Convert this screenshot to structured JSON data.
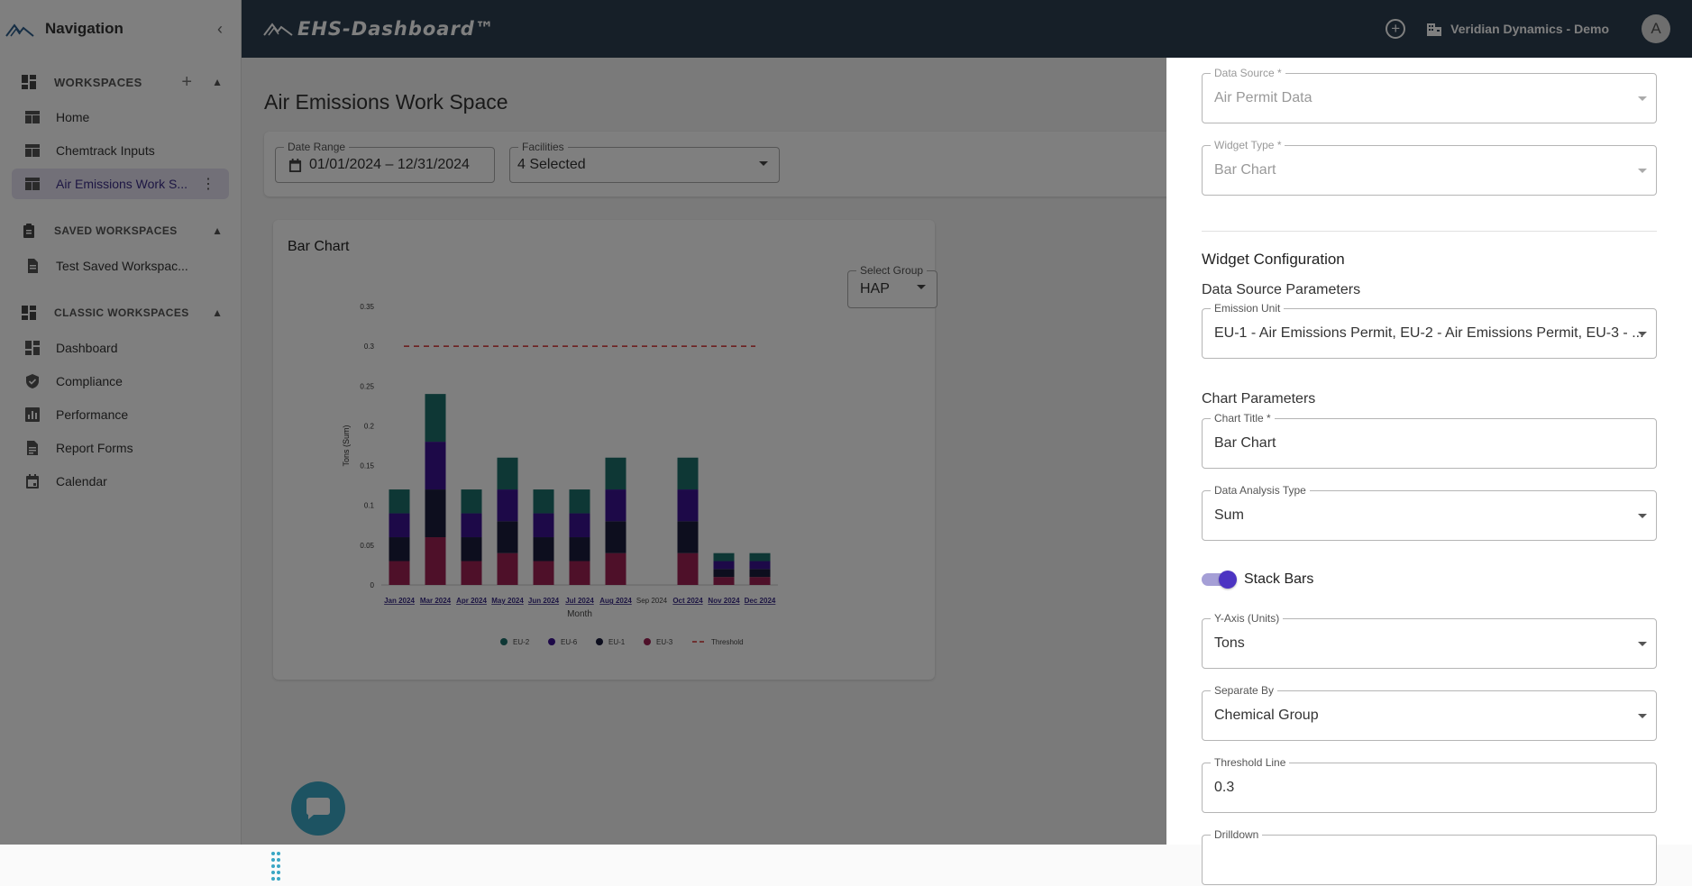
{
  "sidebar": {
    "title": "Navigation",
    "workspaces_label": "WORKSPACES",
    "workspaces": [
      {
        "label": "Home"
      },
      {
        "label": "Chemtrack Inputs"
      },
      {
        "label": "Air Emissions Work S..."
      }
    ],
    "saved_label": "SAVED WORKSPACES",
    "saved": [
      {
        "label": "Test Saved Workspac..."
      }
    ],
    "classic_label": "CLASSIC WORKSPACES",
    "classic": [
      {
        "label": "Dashboard",
        "icon": "dashboard-icon"
      },
      {
        "label": "Compliance",
        "icon": "shield-icon"
      },
      {
        "label": "Performance",
        "icon": "bar-chart-icon"
      },
      {
        "label": "Report Forms",
        "icon": "document-icon"
      },
      {
        "label": "Calendar",
        "icon": "calendar-icon"
      }
    ]
  },
  "header": {
    "brand": "EHS-Dashboard™",
    "org": "Veridian Dynamics - Demo",
    "avatar": "A"
  },
  "main": {
    "title": "Air Emissions Work Space",
    "date_range_label": "Date Range",
    "date_range_value": "01/01/2024 – 12/31/2024",
    "facilities_label": "Facilities",
    "facilities_value": "4 Selected",
    "card_title": "Bar Chart",
    "group_label": "Select Group",
    "group_value": "HAP"
  },
  "chart_data": {
    "type": "bar",
    "stacked": true,
    "title": "",
    "xlabel": "Month",
    "ylabel": "Tons (Sum)",
    "ylim": [
      0,
      0.35
    ],
    "yticks": [
      0,
      0.05,
      0.1,
      0.15,
      0.2,
      0.25,
      0.3,
      0.35
    ],
    "categories": [
      "Jan 2024",
      "Mar 2024",
      "Apr 2024",
      "May 2024",
      "Jun 2024",
      "Jul 2024",
      "Aug 2024",
      "Sep 2024",
      "Oct 2024",
      "Nov 2024",
      "Dec 2024"
    ],
    "category_linked": [
      true,
      true,
      true,
      true,
      true,
      true,
      true,
      false,
      true,
      true,
      true
    ],
    "series": [
      {
        "name": "EU-3",
        "color": "#9c2152",
        "values": [
          0.03,
          0.06,
          0.03,
          0.04,
          0.03,
          0.03,
          0.04,
          0,
          0.04,
          0.01,
          0.01
        ]
      },
      {
        "name": "EU-1",
        "color": "#1a1d3c",
        "values": [
          0.03,
          0.06,
          0.03,
          0.04,
          0.03,
          0.03,
          0.04,
          0,
          0.04,
          0.01,
          0.01
        ]
      },
      {
        "name": "EU-6",
        "color": "#3b1390",
        "values": [
          0.03,
          0.06,
          0.03,
          0.04,
          0.03,
          0.03,
          0.04,
          0,
          0.04,
          0.01,
          0.01
        ]
      },
      {
        "name": "EU-2",
        "color": "#1d6f6a",
        "values": [
          0.03,
          0.06,
          0.03,
          0.04,
          0.03,
          0.03,
          0.04,
          0,
          0.04,
          0.01,
          0.01
        ]
      }
    ],
    "threshold": {
      "name": "Threshold",
      "value": 0.3,
      "color": "#d32f2f"
    },
    "legend_order": [
      "EU-2",
      "EU-6",
      "EU-1",
      "EU-3",
      "Threshold"
    ],
    "legend_position": "bottom"
  },
  "drawer": {
    "data_source_label": "Data Source *",
    "data_source_value": "Air Permit Data",
    "widget_type_label": "Widget Type *",
    "widget_type_value": "Bar Chart",
    "config_heading": "Widget Configuration",
    "ds_params_heading": "Data Source Parameters",
    "emission_unit_label": "Emission Unit",
    "emission_unit_value": "EU-1 - Air Emissions Permit, EU-2 - Air Emissions Permit, EU-3 - ...",
    "chart_params_heading": "Chart Parameters",
    "chart_title_label": "Chart Title *",
    "chart_title_value": "Bar Chart",
    "analysis_label": "Data Analysis Type",
    "analysis_value": "Sum",
    "stack_label": "Stack Bars",
    "stack_on": true,
    "yaxis_label": "Y-Axis (Units)",
    "yaxis_value": "Tons",
    "separate_label": "Separate By",
    "separate_value": "Chemical Group",
    "threshold_label": "Threshold Line",
    "threshold_value": "0.3",
    "drilldown_label": "Drilldown"
  }
}
